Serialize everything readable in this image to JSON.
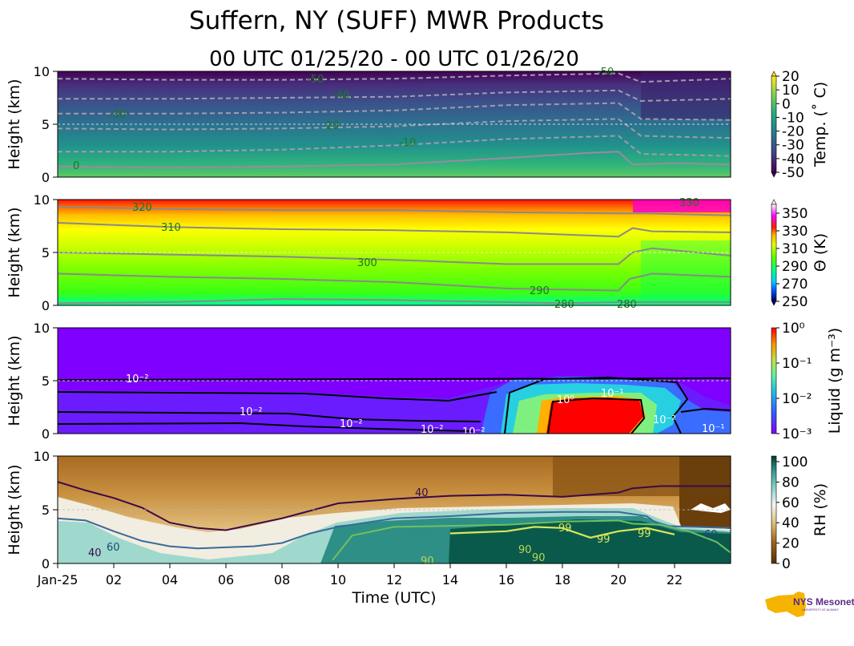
{
  "title": "Suffern, NY (SUFF) MWR Products",
  "subtitle": "00 UTC 01/25/20 - 00 UTC 01/26/20",
  "logo": {
    "text": "NYS Mesonet",
    "subtext": "UNIVERSITY AT ALBANY",
    "colors": {
      "state": "#f5b400",
      "text": "#5b2a86"
    }
  },
  "chart_data": [
    {
      "type": "heatmap",
      "panel": "temperature",
      "ylabel": "Height (km)",
      "ylim": [
        0,
        10
      ],
      "yticks": [
        "0",
        "5",
        "10"
      ],
      "xlim_hours": [
        0,
        24
      ],
      "colorbar": {
        "label": "Temp. (˚ C)",
        "ticks": [
          "20",
          "10",
          "0",
          "-10",
          "-20",
          "-30",
          "-40",
          "-50"
        ],
        "range": [
          -50,
          20
        ],
        "colors": [
          "#440154",
          "#414487",
          "#2a788e",
          "#22a884",
          "#7ad151",
          "#fde725"
        ]
      },
      "contour_labels": [
        "-50",
        "-40",
        "-30",
        "-20",
        "-10",
        "0"
      ],
      "contours": [
        {
          "level": 0,
          "x": [
            0,
            4,
            8,
            12,
            16,
            19,
            20,
            20.5,
            22,
            24
          ],
          "y": [
            1.0,
            0.9,
            1.0,
            1.2,
            1.8,
            2.3,
            2.4,
            1.2,
            1.3,
            1.2
          ]
        },
        {
          "level": -10,
          "x": [
            0,
            4,
            8,
            12,
            16,
            20,
            20.8,
            24
          ],
          "y": [
            2.4,
            2.4,
            2.6,
            3.0,
            3.6,
            3.9,
            2.2,
            2.0
          ]
        },
        {
          "level": -20,
          "x": [
            0,
            4,
            8,
            12,
            16,
            20,
            20.8,
            24
          ],
          "y": [
            4.6,
            4.5,
            4.6,
            4.8,
            5.3,
            5.5,
            3.9,
            3.7
          ]
        },
        {
          "level": -30,
          "x": [
            0,
            4,
            8,
            12,
            16,
            20,
            20.8,
            24
          ],
          "y": [
            6.0,
            6.0,
            6.1,
            6.3,
            6.8,
            7.0,
            5.5,
            5.4
          ]
        },
        {
          "level": -40,
          "x": [
            0,
            4,
            8,
            12,
            16,
            20,
            20.8,
            24
          ],
          "y": [
            7.4,
            7.4,
            7.5,
            7.6,
            8.0,
            8.2,
            7.2,
            7.4
          ]
        },
        {
          "level": -50,
          "x": [
            0,
            4,
            8,
            12,
            16,
            20,
            20.8,
            24
          ],
          "y": [
            9.3,
            9.2,
            9.2,
            9.3,
            9.6,
            9.8,
            9.0,
            9.3
          ]
        }
      ]
    },
    {
      "type": "heatmap",
      "panel": "potential_temperature",
      "ylabel": "Height (km)",
      "ylim": [
        0,
        10
      ],
      "yticks": [
        "0",
        "5",
        "10"
      ],
      "xlim_hours": [
        0,
        24
      ],
      "colorbar": {
        "label": "Θ (K)",
        "ticks": [
          "350",
          "330",
          "310",
          "290",
          "270",
          "250"
        ],
        "range": [
          250,
          360
        ],
        "colors": [
          "#000080",
          "#00bfff",
          "#00ff7f",
          "#7fff00",
          "#ffff00",
          "#ffa500",
          "#ff0000",
          "#ff00ff",
          "#ffffff"
        ]
      },
      "contour_labels": [
        "320",
        "310",
        "300",
        "290",
        "280",
        "280",
        "330"
      ],
      "contours": [
        {
          "level": 280,
          "x": [
            0,
            4,
            8,
            12,
            16,
            18,
            20,
            20.5,
            22,
            24
          ],
          "y": [
            0.2,
            0.3,
            0.6,
            0.5,
            0.3,
            0.2,
            0.3,
            0.3,
            0.3,
            0.3
          ]
        },
        {
          "level": 290,
          "x": [
            0,
            4,
            8,
            12,
            16,
            20,
            20.4,
            21.2,
            24
          ],
          "y": [
            3.0,
            2.7,
            2.5,
            2.2,
            1.6,
            1.4,
            2.5,
            3.0,
            2.7
          ]
        },
        {
          "level": 300,
          "x": [
            0,
            4,
            8,
            12,
            16,
            20,
            20.5,
            21.2,
            24
          ],
          "y": [
            5.0,
            4.8,
            4.6,
            4.3,
            3.9,
            3.9,
            5.0,
            5.4,
            4.7
          ]
        },
        {
          "level": 310,
          "x": [
            0,
            4,
            8,
            12,
            16,
            20,
            20.5,
            21.2,
            24
          ],
          "y": [
            7.8,
            7.4,
            7.2,
            7.1,
            6.9,
            6.5,
            7.3,
            7.0,
            6.9
          ]
        },
        {
          "level": 320,
          "x": [
            0,
            4,
            8,
            12,
            16,
            20,
            21,
            24
          ],
          "y": [
            9.3,
            9.1,
            9.0,
            9.0,
            8.8,
            8.7,
            8.7,
            8.5
          ]
        }
      ]
    },
    {
      "type": "heatmap",
      "panel": "liquid",
      "ylabel": "Height (km)",
      "ylim": [
        0,
        10
      ],
      "yticks": [
        "0",
        "5",
        "10"
      ],
      "xlim_hours": [
        0,
        24
      ],
      "colorbar": {
        "label": "Liquid (g m⁻³)",
        "ticks": [
          "10⁰",
          "10⁻¹",
          "10⁻²",
          "10⁻³"
        ],
        "scale": "log",
        "range": [
          0.001,
          1
        ],
        "colors": [
          "#7f00ff",
          "#2f6bff",
          "#1fd6d6",
          "#7fff7f",
          "#ffd000",
          "#ff0000"
        ]
      },
      "contour_labels": [
        "10⁻²",
        "10⁻²",
        "10⁻²",
        "10⁻²",
        "10⁻²",
        "10⁰",
        "10⁻¹",
        "10⁻²",
        "10⁻¹"
      ]
    },
    {
      "type": "heatmap",
      "panel": "relative_humidity",
      "ylabel": "Height (km)",
      "xlabel": "Time (UTC)",
      "ylim": [
        0,
        10
      ],
      "yticks": [
        "0",
        "5",
        "10"
      ],
      "xlim_hours": [
        0,
        24
      ],
      "xticks": [
        {
          "h": 0,
          "label": "Jan-25"
        },
        {
          "h": 2,
          "label": "02"
        },
        {
          "h": 4,
          "label": "04"
        },
        {
          "h": 6,
          "label": "06"
        },
        {
          "h": 8,
          "label": "08"
        },
        {
          "h": 10,
          "label": "10"
        },
        {
          "h": 12,
          "label": "12"
        },
        {
          "h": 14,
          "label": "14"
        },
        {
          "h": 16,
          "label": "16"
        },
        {
          "h": 18,
          "label": "18"
        },
        {
          "h": 20,
          "label": "20"
        },
        {
          "h": 22,
          "label": "22"
        }
      ],
      "colorbar": {
        "label": "RH (%)",
        "ticks": [
          "100",
          "80",
          "60",
          "40",
          "20",
          "0"
        ],
        "range": [
          0,
          105
        ],
        "colors": [
          "#543005",
          "#bf812d",
          "#f6e8c3",
          "#f5f5f5",
          "#80cdc1",
          "#35978f",
          "#003c30"
        ]
      },
      "contour_labels": [
        "40",
        "60",
        "40",
        "60",
        "99",
        "99",
        "99",
        "90",
        "90",
        "90"
      ],
      "contours": [
        {
          "level": 40,
          "x": [
            0,
            1,
            2,
            3,
            4,
            5,
            6,
            8,
            10,
            12,
            14,
            16,
            18,
            20,
            20.5,
            21.5,
            24
          ],
          "y": [
            7.6,
            6.8,
            6.1,
            5.2,
            3.8,
            3.3,
            3.1,
            4.2,
            5.6,
            6.0,
            6.3,
            6.4,
            6.2,
            6.6,
            7.0,
            7.2,
            7.2
          ]
        },
        {
          "level": 60,
          "x": [
            0,
            1,
            2,
            3,
            4,
            5,
            6,
            7,
            8,
            9,
            10,
            12,
            14,
            16,
            18,
            20,
            21,
            21.5,
            24
          ],
          "y": [
            4.2,
            4.0,
            3.0,
            2.1,
            1.6,
            1.4,
            1.5,
            1.6,
            1.9,
            2.8,
            3.4,
            4.2,
            4.4,
            4.7,
            4.8,
            4.8,
            4.4,
            3.5,
            3.3
          ]
        },
        {
          "level": 90,
          "x": [
            9.8,
            10.5,
            12,
            14,
            16,
            18,
            20,
            20.5,
            21.5,
            22.5,
            23.5,
            24
          ],
          "y": [
            0.3,
            2.6,
            3.4,
            3.5,
            3.6,
            3.9,
            4.0,
            3.7,
            3.6,
            3.0,
            2.0,
            1.0
          ]
        },
        {
          "level": 99,
          "x": [
            14,
            15,
            16,
            17,
            18,
            19,
            20,
            21,
            22
          ],
          "y": [
            2.8,
            2.9,
            3.0,
            3.4,
            3.3,
            2.4,
            3.0,
            3.3,
            2.7
          ]
        }
      ]
    }
  ]
}
